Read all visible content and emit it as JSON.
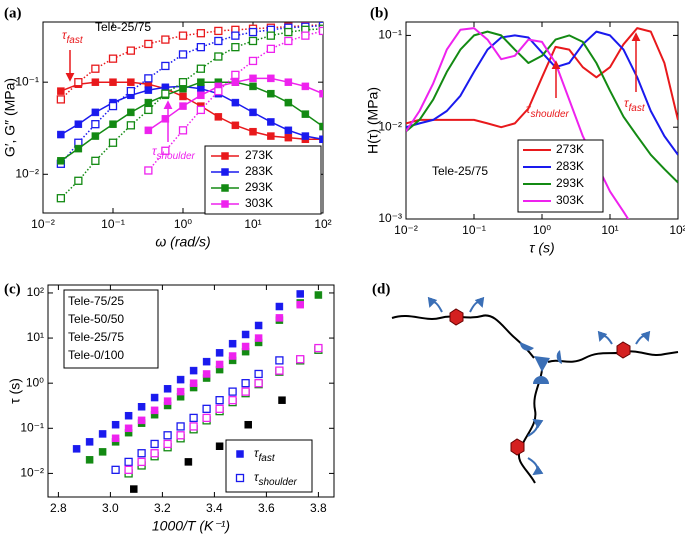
{
  "chart_data": [
    {
      "type": "line",
      "title": "(a)",
      "annotation": "Tele-25/75",
      "xlabel": "ω (rad/s)",
      "ylabel": "G′, G″ (MPa)",
      "xscale": "log",
      "yscale": "log",
      "xlim": [
        0.01,
        100
      ],
      "ylim": [
        0.0038,
        0.45
      ],
      "xticks": [
        {
          "value": 0.01,
          "label": "10⁻²"
        },
        {
          "value": 0.1,
          "label": "10⁻¹"
        },
        {
          "value": 1,
          "label": "10⁰"
        },
        {
          "value": 10,
          "label": "10¹"
        },
        {
          "value": 100,
          "label": "10²"
        }
      ],
      "yticks": [
        {
          "value": 0.01,
          "label": "10⁻²"
        },
        {
          "value": 0.1,
          "label": "10⁻¹"
        }
      ],
      "legend": "lower right",
      "annotations": [
        {
          "symbol": "τ",
          "sub": "fast",
          "color": "#e8191c"
        },
        {
          "symbol": "τ",
          "sub": "shoulder",
          "color": "#ee22ee"
        }
      ],
      "series": [
        {
          "name": "273K",
          "color": "#e8191c",
          "x": [
            0.018,
            0.032,
            0.056,
            0.1,
            0.18,
            0.32,
            0.56,
            1,
            1.8,
            3.2,
            5.6,
            10,
            18,
            32,
            56,
            100
          ],
          "loss_values": [
            0.08,
            0.095,
            0.1,
            0.1,
            0.1,
            0.095,
            0.085,
            0.07,
            0.055,
            0.042,
            0.034,
            0.029,
            0.026,
            0.025,
            0.024,
            0.024
          ],
          "storage_values": [
            0.065,
            0.1,
            0.14,
            0.18,
            0.22,
            0.26,
            0.29,
            0.32,
            0.34,
            0.36,
            0.37,
            0.38,
            0.39,
            0.4,
            0.41,
            0.42
          ]
        },
        {
          "name": "283K",
          "color": "#1a1aee",
          "x": [
            0.018,
            0.032,
            0.056,
            0.1,
            0.18,
            0.32,
            0.56,
            1,
            1.8,
            3.2,
            5.6,
            10,
            18,
            32,
            56,
            100
          ],
          "loss_values": [
            0.027,
            0.035,
            0.047,
            0.06,
            0.072,
            0.082,
            0.088,
            0.09,
            0.085,
            0.075,
            0.06,
            0.047,
            0.037,
            0.03,
            0.026,
            0.024
          ],
          "storage_values": [
            0.013,
            0.022,
            0.035,
            0.055,
            0.08,
            0.11,
            0.15,
            0.2,
            0.24,
            0.28,
            0.32,
            0.35,
            0.37,
            0.39,
            0.4,
            0.41
          ]
        },
        {
          "name": "293K",
          "color": "#138a13",
          "x": [
            0.018,
            0.032,
            0.056,
            0.1,
            0.18,
            0.32,
            0.56,
            1,
            1.8,
            3.2,
            5.6,
            10,
            18,
            32,
            56,
            100
          ],
          "loss_values": [
            0.014,
            0.019,
            0.026,
            0.035,
            0.047,
            0.06,
            0.072,
            0.085,
            0.1,
            0.1,
            0.1,
            0.09,
            0.075,
            0.06,
            0.045,
            0.033
          ],
          "storage_values": [
            0.0055,
            0.0085,
            0.014,
            0.022,
            0.034,
            0.05,
            0.075,
            0.1,
            0.14,
            0.19,
            0.24,
            0.28,
            0.32,
            0.35,
            0.37,
            0.38
          ]
        },
        {
          "name": "303K",
          "color": "#ee22ee",
          "x": [
            0.32,
            0.56,
            1,
            1.8,
            3.2,
            5.6,
            10,
            18,
            32,
            56,
            100
          ],
          "loss_values": [
            0.03,
            0.04,
            0.055,
            0.072,
            0.09,
            0.1,
            0.11,
            0.11,
            0.1,
            0.09,
            0.075
          ],
          "storage_values": [
            0.011,
            0.018,
            0.03,
            0.05,
            0.08,
            0.12,
            0.17,
            0.23,
            0.28,
            0.32,
            0.36
          ]
        }
      ]
    },
    {
      "type": "line",
      "title": "(b)",
      "annotation": "Tele-25/75",
      "xlabel": "τ (s)",
      "ylabel": "H(τ) (MPa)",
      "xscale": "log",
      "yscale": "log",
      "xlim": [
        0.01,
        100
      ],
      "ylim": [
        0.001,
        0.14
      ],
      "xticks": [
        {
          "value": 0.01,
          "label": "10⁻²"
        },
        {
          "value": 0.1,
          "label": "10⁻¹"
        },
        {
          "value": 1,
          "label": "10⁰"
        },
        {
          "value": 10,
          "label": "10¹"
        },
        {
          "value": 100,
          "label": "10²"
        }
      ],
      "yticks": [
        {
          "value": 0.001,
          "label": "10⁻³"
        },
        {
          "value": 0.01,
          "label": "10⁻²"
        },
        {
          "value": 0.1,
          "label": "10⁻¹"
        }
      ],
      "legend": "lower right",
      "annotations": [
        {
          "symbol": "τ",
          "sub": "shoulder",
          "color": "#e8191c"
        },
        {
          "symbol": "τ",
          "sub": "fast",
          "color": "#e8191c"
        }
      ],
      "x": [
        0.01,
        0.0158,
        0.0251,
        0.0398,
        0.0631,
        0.1,
        0.158,
        0.251,
        0.398,
        0.631,
        1,
        1.58,
        2.51,
        3.98,
        6.31,
        10,
        15.8,
        25.1,
        39.8,
        63.1,
        100
      ],
      "series": [
        {
          "name": "273K",
          "color": "#e8191c",
          "values": [
            0.011,
            0.012,
            0.012,
            0.012,
            0.012,
            0.012,
            0.011,
            0.01,
            0.011,
            0.016,
            0.035,
            0.075,
            0.07,
            0.045,
            0.035,
            0.045,
            0.08,
            0.12,
            0.11,
            0.05,
            0.012
          ]
        },
        {
          "name": "283K",
          "color": "#1a1aee",
          "values": [
            0.01,
            0.011,
            0.012,
            0.015,
            0.022,
            0.04,
            0.07,
            0.095,
            0.1,
            0.095,
            0.065,
            0.045,
            0.05,
            0.08,
            0.11,
            0.1,
            0.07,
            0.035,
            0.015,
            0.008,
            0.005
          ]
        },
        {
          "name": "293K",
          "color": "#138a13",
          "values": [
            0.009,
            0.012,
            0.02,
            0.04,
            0.07,
            0.1,
            0.11,
            0.1,
            0.07,
            0.05,
            0.06,
            0.09,
            0.1,
            0.085,
            0.05,
            0.025,
            0.013,
            0.008,
            0.005,
            0.0035,
            0.0025
          ]
        },
        {
          "name": "303K",
          "color": "#ee22ee",
          "values": [
            0.009,
            0.015,
            0.03,
            0.07,
            0.115,
            0.12,
            0.09,
            0.055,
            0.06,
            0.09,
            0.085,
            0.05,
            0.02,
            0.008,
            0.004,
            0.002,
            0.0012,
            0.0007,
            null,
            null,
            null
          ]
        }
      ]
    },
    {
      "type": "scatter",
      "title": "(c)",
      "xlabel": "1000/T (K⁻¹)",
      "ylabel": "τ (s)",
      "xscale": "linear",
      "yscale": "log",
      "xlim": [
        2.76,
        3.86
      ],
      "ylim": [
        0.003,
        150
      ],
      "xticks": [
        2.8,
        {
          "value": 3,
          "label": "3.0"
        },
        3.2,
        3.4,
        3.6,
        3.8
      ],
      "yticks": [
        {
          "value": 0.01,
          "label": "10⁻²"
        },
        {
          "value": 0.1,
          "label": "10⁻¹"
        },
        {
          "value": 1,
          "label": "10⁰"
        },
        {
          "value": 10,
          "label": "10¹"
        },
        {
          "value": 100,
          "label": "10²"
        }
      ],
      "legend": "upper left",
      "marker_legend": [
        {
          "symbol": "τ",
          "sub": "fast"
        },
        {
          "symbol": "τ",
          "sub": "shoulder"
        }
      ],
      "series": [
        {
          "name": "Tele-75/25",
          "color": "#1a1aee",
          "x": [
            2.87,
            2.92,
            2.97,
            3.02,
            3.07,
            3.12,
            3.17,
            3.22,
            3.27,
            3.32,
            3.37,
            3.42,
            3.47,
            3.52,
            3.57,
            3.65,
            3.73
          ],
          "values": [
            0.035,
            0.05,
            0.075,
            0.12,
            0.19,
            0.3,
            0.48,
            0.75,
            1.2,
            1.9,
            3,
            4.7,
            7.5,
            12,
            19,
            50,
            95
          ],
          "shoulder_x": [
            3.02,
            3.07,
            3.12,
            3.17,
            3.22,
            3.27,
            3.32,
            3.37,
            3.42,
            3.47,
            3.52,
            3.57,
            3.65
          ],
          "shoulder_values": [
            0.012,
            0.018,
            0.028,
            0.045,
            0.07,
            0.11,
            0.17,
            0.27,
            0.42,
            0.65,
            1,
            1.6,
            3.2
          ]
        },
        {
          "name": "Tele-50/50",
          "color": "#138a13",
          "x": [
            2.92,
            2.97,
            3.02,
            3.07,
            3.12,
            3.17,
            3.22,
            3.27,
            3.32,
            3.37,
            3.42,
            3.47,
            3.52,
            3.57,
            3.65,
            3.73,
            3.8
          ],
          "values": [
            0.02,
            0.03,
            0.05,
            0.08,
            0.13,
            0.2,
            0.32,
            0.5,
            0.8,
            1.3,
            2,
            3.2,
            5,
            8,
            25,
            60,
            90
          ],
          "shoulder_x": [
            3.07,
            3.12,
            3.17,
            3.22,
            3.27,
            3.32,
            3.37,
            3.42,
            3.47,
            3.52,
            3.57,
            3.65,
            3.73,
            3.8
          ],
          "shoulder_values": [
            0.01,
            0.015,
            0.024,
            0.038,
            0.06,
            0.095,
            0.15,
            0.24,
            0.38,
            0.6,
            0.95,
            1.8,
            3.2,
            5.5
          ]
        },
        {
          "name": "Tele-25/75",
          "color": "#ee22ee",
          "x": [
            3.02,
            3.07,
            3.12,
            3.17,
            3.22,
            3.27,
            3.32,
            3.37,
            3.42,
            3.47,
            3.52,
            3.57,
            3.65,
            3.73
          ],
          "values": [
            0.06,
            0.1,
            0.15,
            0.25,
            0.4,
            0.65,
            1,
            1.6,
            2.6,
            4,
            6.5,
            10,
            28,
            55
          ],
          "shoulder_x": [
            3.07,
            3.12,
            3.17,
            3.22,
            3.27,
            3.32,
            3.37,
            3.42,
            3.47,
            3.52,
            3.57,
            3.65,
            3.73,
            3.8
          ],
          "shoulder_values": [
            0.012,
            0.018,
            0.028,
            0.045,
            0.07,
            0.11,
            0.17,
            0.27,
            0.42,
            0.65,
            1,
            1.9,
            3.4,
            6
          ]
        },
        {
          "name": "Tele-0/100",
          "color": "#000000",
          "x": [
            3.09,
            3.3,
            3.42,
            3.53,
            3.66
          ],
          "values": [
            0.0045,
            0.018,
            0.04,
            0.12,
            0.42
          ]
        }
      ]
    }
  ],
  "diagram": {
    "label": "(d)"
  }
}
